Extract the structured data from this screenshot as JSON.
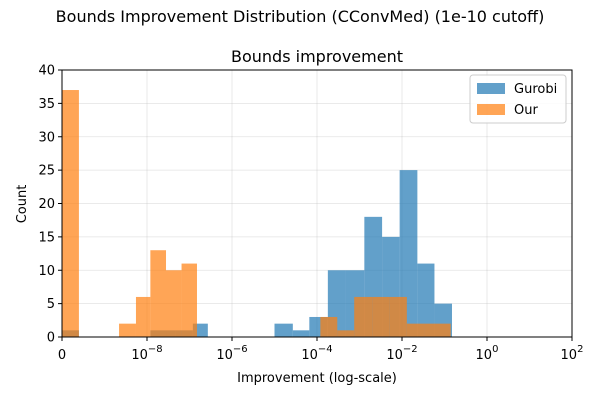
{
  "figure": {
    "suptitle": "Bounds Improvement Distribution (CConvMed) (1e-10 cutoff)"
  },
  "chart_data": {
    "type": "bar",
    "title": "Bounds improvement",
    "xlabel": "Improvement (log-scale)",
    "ylabel": "Count",
    "x_scale": "log with zero bin",
    "xlim": [
      0,
      100
    ],
    "ylim": [
      0,
      40
    ],
    "x_ticks": [
      {
        "value": 0,
        "base": "0",
        "exp": ""
      },
      {
        "value": 1e-08,
        "base": "10",
        "exp": "−8"
      },
      {
        "value": 1e-06,
        "base": "10",
        "exp": "−6"
      },
      {
        "value": 0.0001,
        "base": "10",
        "exp": "−4"
      },
      {
        "value": 0.01,
        "base": "10",
        "exp": "−2"
      },
      {
        "value": 1,
        "base": "10",
        "exp": "0"
      },
      {
        "value": 100,
        "base": "10",
        "exp": "2"
      }
    ],
    "y_ticks": [
      0,
      5,
      10,
      15,
      20,
      25,
      30,
      35,
      40
    ],
    "grid": true,
    "legend_position": "top-right",
    "series": [
      {
        "name": "Gurobi",
        "color": "#1f77b4",
        "opacity": 0.7,
        "bins": [
          {
            "x0": 0,
            "x1": 2.5e-10,
            "count": 1
          },
          {
            "x0": 1.2e-08,
            "x1": 4.7e-08,
            "count": 1
          },
          {
            "x0": 4.7e-08,
            "x1": 1.2e-07,
            "count": 1
          },
          {
            "x0": 1.2e-07,
            "x1": 2.7e-07,
            "count": 2
          },
          {
            "x0": 1e-05,
            "x1": 2.7e-05,
            "count": 2
          },
          {
            "x0": 2.7e-05,
            "x1": 6.6e-05,
            "count": 1
          },
          {
            "x0": 6.6e-05,
            "x1": 0.00018,
            "count": 3
          },
          {
            "x0": 0.00018,
            "x1": 0.00048,
            "count": 10
          },
          {
            "x0": 0.00048,
            "x1": 0.0013,
            "count": 10
          },
          {
            "x0": 0.0013,
            "x1": 0.0034,
            "count": 18
          },
          {
            "x0": 0.0034,
            "x1": 0.0088,
            "count": 15
          },
          {
            "x0": 0.0088,
            "x1": 0.023,
            "count": 25
          },
          {
            "x0": 0.023,
            "x1": 0.058,
            "count": 11
          },
          {
            "x0": 0.058,
            "x1": 0.15,
            "count": 5
          }
        ]
      },
      {
        "name": "Our",
        "color": "#ff7f0e",
        "opacity": 0.7,
        "bins": [
          {
            "x0": 0,
            "x1": 2.5e-10,
            "count": 37
          },
          {
            "x0": 2.2e-09,
            "x1": 5.5e-09,
            "count": 2
          },
          {
            "x0": 5.5e-09,
            "x1": 1.2e-08,
            "count": 6
          },
          {
            "x0": 1.2e-08,
            "x1": 2.8e-08,
            "count": 13
          },
          {
            "x0": 2.8e-08,
            "x1": 6.5e-08,
            "count": 10
          },
          {
            "x0": 6.5e-08,
            "x1": 1.5e-07,
            "count": 11
          },
          {
            "x0": 0.00012,
            "x1": 0.0003,
            "count": 3
          },
          {
            "x0": 0.0003,
            "x1": 0.00075,
            "count": 1
          },
          {
            "x0": 0.00075,
            "x1": 0.002,
            "count": 6
          },
          {
            "x0": 0.002,
            "x1": 0.005,
            "count": 6
          },
          {
            "x0": 0.005,
            "x1": 0.013,
            "count": 6
          },
          {
            "x0": 0.013,
            "x1": 0.033,
            "count": 2
          },
          {
            "x0": 0.033,
            "x1": 0.14,
            "count": 2
          }
        ]
      }
    ]
  }
}
